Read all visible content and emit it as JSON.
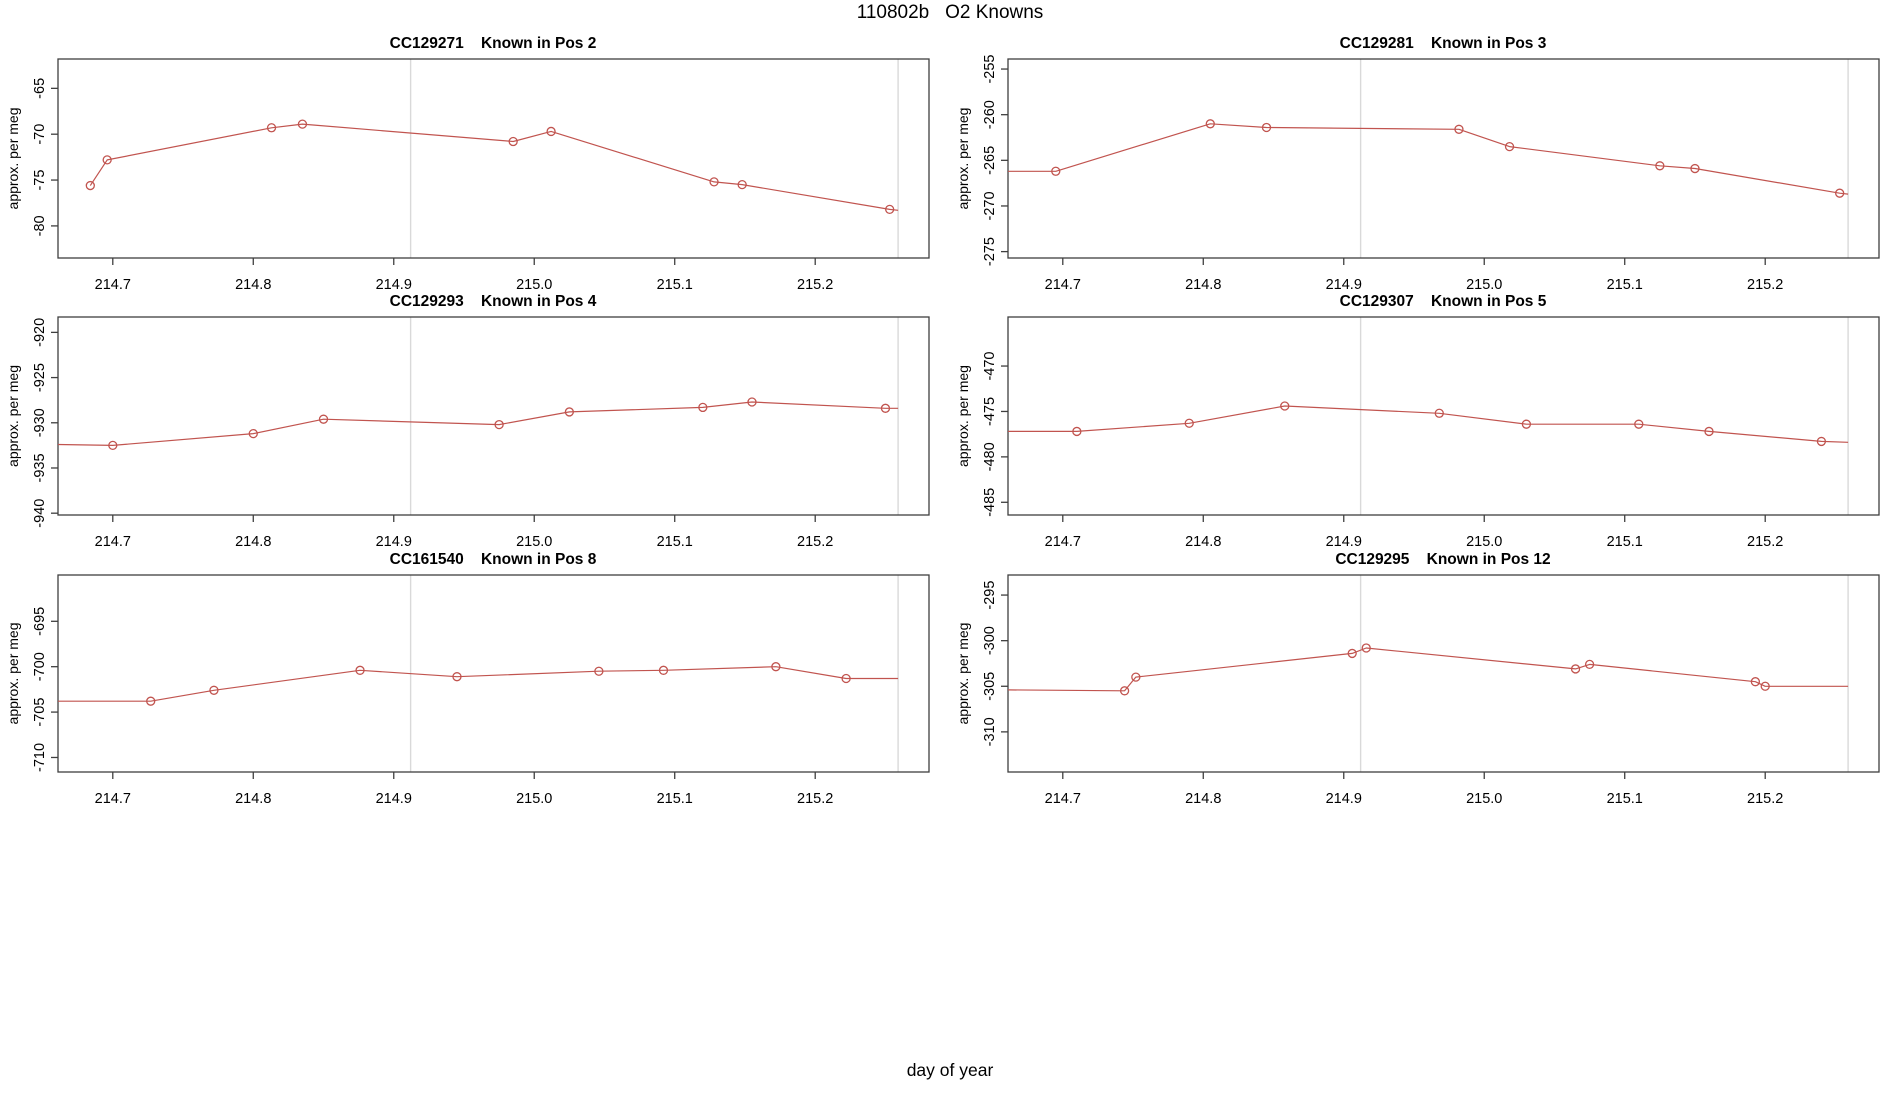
{
  "main_title": "110802b   O2 Knowns",
  "xlabel": "day of year",
  "ylab": "approx. per meg",
  "colors": {
    "series": "#c1544f",
    "vline": "#d9d9d9",
    "frame": "#3f3f3f",
    "text": "#000000"
  },
  "chart_data": {
    "type": "line",
    "x_axis": {
      "label": "day of year",
      "xlim": [
        214.661,
        215.281
      ],
      "ticks": [
        214.7,
        214.8,
        214.9,
        215.0,
        215.1,
        215.2
      ],
      "tick_labels": [
        "214.7",
        "214.8",
        "214.9",
        "215.0",
        "215.1",
        "215.2"
      ]
    },
    "vlines": [
      214.912,
      215.259
    ],
    "grid": false,
    "legend": "none",
    "plots": [
      {
        "title": "CC129271    Known in Pos 2",
        "ylab": "approx. per meg",
        "ylim": [
          -83.5,
          -61.8
        ],
        "yticks": [
          -80,
          -75,
          -70,
          -65
        ],
        "ytick_labels": [
          "-80",
          "-75",
          "-70",
          "-65"
        ],
        "points": [
          [
            214.684,
            -75.6,
            1
          ],
          [
            214.696,
            -72.8,
            1
          ],
          [
            214.813,
            -69.3,
            1
          ],
          [
            214.835,
            -68.9,
            1
          ],
          [
            214.985,
            -70.8,
            1
          ],
          [
            215.012,
            -69.7,
            1
          ],
          [
            215.128,
            -75.2,
            1
          ],
          [
            215.148,
            -75.5,
            1
          ],
          [
            215.253,
            -78.2,
            1
          ],
          [
            215.259,
            -78.3,
            0
          ]
        ]
      },
      {
        "title": "CC129281    Known in Pos 3",
        "ylab": "approx. per meg",
        "ylim": [
          -275.7,
          -253.9
        ],
        "yticks": [
          -275,
          -270,
          -265,
          -260,
          -255
        ],
        "ytick_labels": [
          "-275",
          "-270",
          "-265",
          "-260",
          "-255"
        ],
        "points": [
          [
            214.661,
            -266.2,
            0
          ],
          [
            214.695,
            -266.2,
            1
          ],
          [
            214.805,
            -261.0,
            1
          ],
          [
            214.845,
            -261.4,
            1
          ],
          [
            214.982,
            -261.6,
            1
          ],
          [
            215.018,
            -263.5,
            1
          ],
          [
            215.125,
            -265.6,
            1
          ],
          [
            215.15,
            -265.9,
            1
          ],
          [
            215.253,
            -268.6,
            1
          ],
          [
            215.259,
            -268.7,
            0
          ]
        ]
      },
      {
        "title": "CC129293    Known in Pos 4",
        "ylab": "approx. per meg",
        "ylim": [
          -940.2,
          -918.3
        ],
        "yticks": [
          -940,
          -935,
          -930,
          -925,
          -920
        ],
        "ytick_labels": [
          "-940",
          "-935",
          "-930",
          "-925",
          "-920"
        ],
        "points": [
          [
            214.661,
            -932.4,
            0
          ],
          [
            214.7,
            -932.5,
            1
          ],
          [
            214.8,
            -931.2,
            1
          ],
          [
            214.85,
            -929.6,
            1
          ],
          [
            214.975,
            -930.2,
            1
          ],
          [
            215.025,
            -928.8,
            1
          ],
          [
            215.12,
            -928.3,
            1
          ],
          [
            215.155,
            -927.7,
            1
          ],
          [
            215.25,
            -928.4,
            1
          ],
          [
            215.259,
            -928.4,
            0
          ]
        ]
      },
      {
        "title": "CC129307    Known in Pos 5",
        "ylab": "approx. per meg",
        "ylim": [
          -486.4,
          -464.6
        ],
        "yticks": [
          -485,
          -480,
          -475,
          -470
        ],
        "ytick_labels": [
          "-485",
          "-480",
          "-475",
          "-470"
        ],
        "points": [
          [
            214.661,
            -477.2,
            0
          ],
          [
            214.71,
            -477.2,
            1
          ],
          [
            214.79,
            -476.3,
            1
          ],
          [
            214.858,
            -474.4,
            1
          ],
          [
            214.968,
            -475.2,
            1
          ],
          [
            215.03,
            -476.4,
            1
          ],
          [
            215.11,
            -476.4,
            1
          ],
          [
            215.16,
            -477.2,
            1
          ],
          [
            215.24,
            -478.3,
            1
          ],
          [
            215.259,
            -478.4,
            0
          ]
        ]
      },
      {
        "title": "CC161540    Known in Pos 8",
        "ylab": "approx. per meg",
        "ylim": [
          -711.6,
          -689.9
        ],
        "yticks": [
          -710,
          -705,
          -700,
          -695
        ],
        "ytick_labels": [
          "-710",
          "-705",
          "-700",
          "-695"
        ],
        "points": [
          [
            214.661,
            -703.8,
            0
          ],
          [
            214.727,
            -703.8,
            1
          ],
          [
            214.772,
            -702.6,
            1
          ],
          [
            214.876,
            -700.4,
            1
          ],
          [
            214.945,
            -701.1,
            1
          ],
          [
            215.046,
            -700.5,
            1
          ],
          [
            215.092,
            -700.4,
            1
          ],
          [
            215.172,
            -700.0,
            1
          ],
          [
            215.222,
            -701.3,
            1
          ],
          [
            215.259,
            -701.3,
            0
          ]
        ]
      },
      {
        "title": "CC129295    Known in Pos 12",
        "ylab": "approx. per meg",
        "ylim": [
          -314.4,
          -292.8
        ],
        "yticks": [
          -310,
          -305,
          -300,
          -295
        ],
        "ytick_labels": [
          "-310",
          "-305",
          "-300",
          "-295"
        ],
        "points": [
          [
            214.661,
            -305.4,
            0
          ],
          [
            214.744,
            -305.5,
            1
          ],
          [
            214.752,
            -304.0,
            1
          ],
          [
            214.906,
            -301.4,
            1
          ],
          [
            214.916,
            -300.8,
            1
          ],
          [
            215.065,
            -303.1,
            1
          ],
          [
            215.075,
            -302.6,
            1
          ],
          [
            215.193,
            -304.5,
            1
          ],
          [
            215.2,
            -305.0,
            1
          ],
          [
            215.259,
            -305.0,
            0
          ]
        ]
      }
    ]
  }
}
